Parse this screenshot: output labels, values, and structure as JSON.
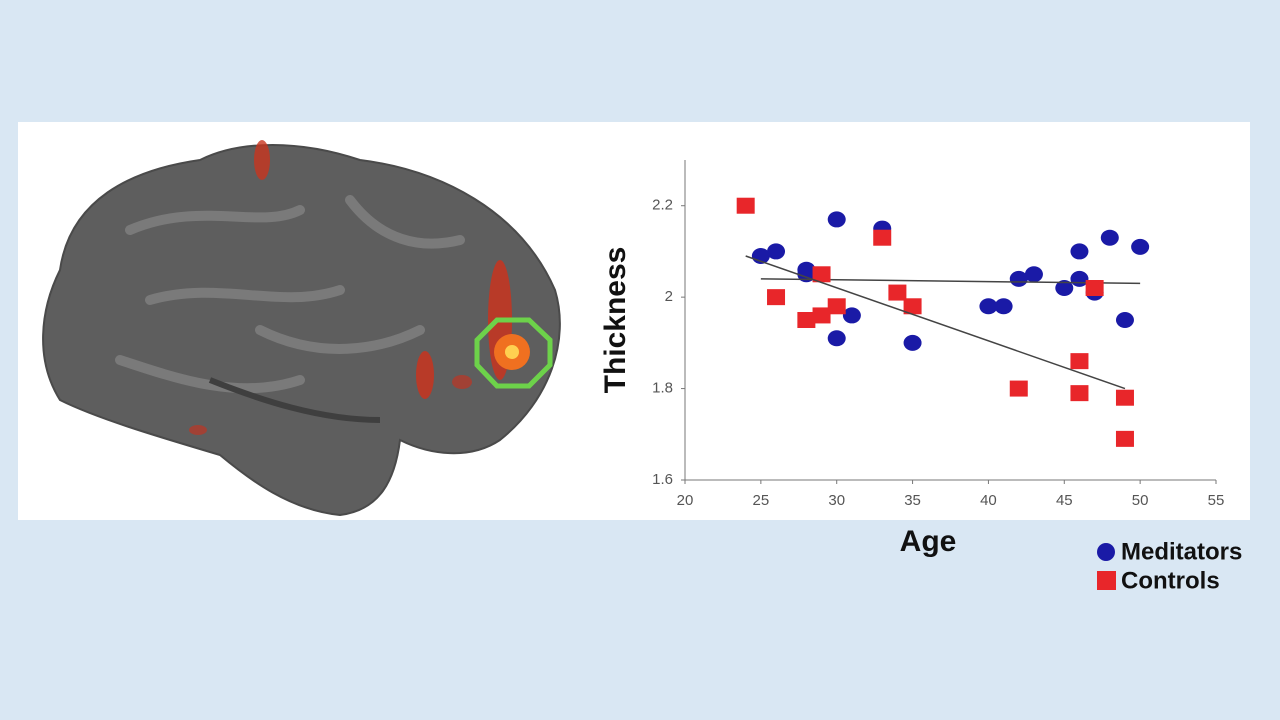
{
  "chart_data": {
    "type": "scatter",
    "x_label": "Age",
    "y_label": "Thickness",
    "xlim": [
      20,
      55
    ],
    "ylim": [
      1.6,
      2.3
    ],
    "xticks": [
      20,
      25,
      30,
      35,
      40,
      45,
      50,
      55
    ],
    "yticks": [
      1.6,
      1.8,
      2,
      2.2
    ],
    "series": [
      {
        "name": "Meditators",
        "color": "#1a1aa6",
        "marker": "circle",
        "x": [
          25,
          26,
          28,
          28,
          30,
          30,
          31,
          33,
          35,
          40,
          41,
          42,
          43,
          45,
          46,
          46,
          47,
          48,
          49,
          50
        ],
        "values": [
          2.09,
          2.1,
          2.06,
          2.05,
          2.17,
          1.91,
          1.96,
          2.15,
          1.9,
          1.98,
          1.98,
          2.04,
          2.05,
          2.02,
          2.1,
          2.04,
          2.01,
          2.13,
          1.95,
          2.11
        ],
        "trend_x": [
          25,
          50
        ],
        "trend_values": [
          2.04,
          2.03
        ]
      },
      {
        "name": "Controls",
        "color": "#e8262a",
        "marker": "square",
        "x": [
          24,
          26,
          28,
          29,
          29,
          30,
          33,
          34,
          35,
          42,
          46,
          46,
          47,
          49,
          49
        ],
        "values": [
          2.2,
          2.0,
          1.95,
          1.96,
          2.05,
          1.98,
          2.13,
          2.01,
          1.98,
          1.8,
          1.86,
          1.79,
          2.02,
          1.78,
          1.69
        ],
        "trend_x": [
          24,
          49
        ],
        "trend_values": [
          2.09,
          1.8
        ]
      }
    ]
  }
}
